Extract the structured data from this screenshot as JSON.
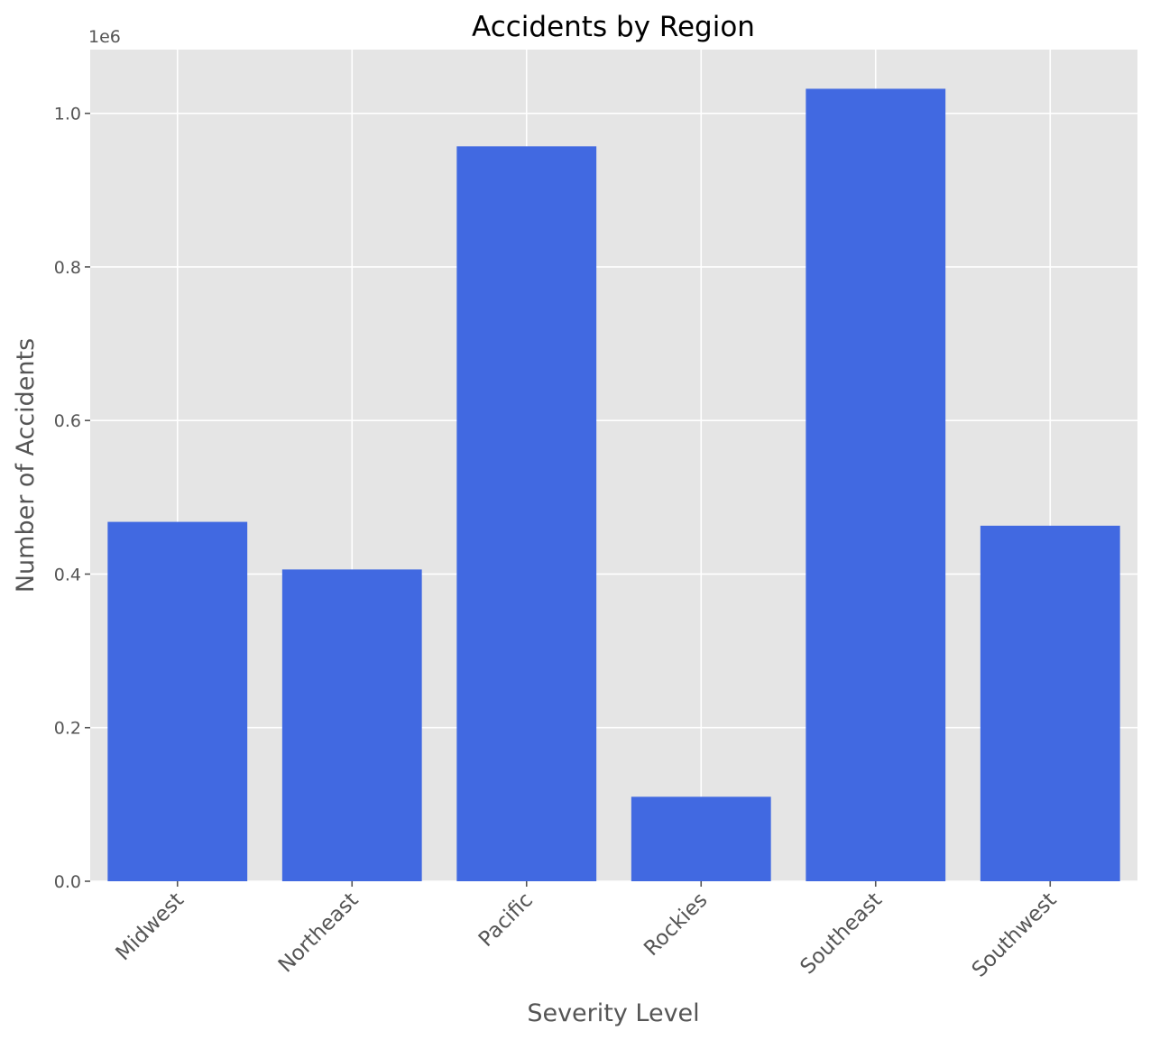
{
  "chart_data": {
    "type": "bar",
    "title": "Accidents by Region",
    "xlabel": "Severity Level",
    "ylabel": "Number of Accidents",
    "y_offset_label": "1e6",
    "categories": [
      "Midwest",
      "Northeast",
      "Pacific",
      "Rockies",
      "Southeast",
      "Southwest"
    ],
    "values": [
      468000,
      406000,
      957000,
      110000,
      1032000,
      463000
    ],
    "ylim": [
      0,
      1083000
    ],
    "yticks": [
      0,
      200000,
      400000,
      600000,
      800000,
      1000000
    ],
    "ytick_labels": [
      "0.0",
      "0.2",
      "0.4",
      "0.6",
      "0.8",
      "1.0"
    ],
    "bar_color": "#4169e1",
    "background_color": "#e5e5e5",
    "grid": true,
    "style": "ggplot"
  }
}
